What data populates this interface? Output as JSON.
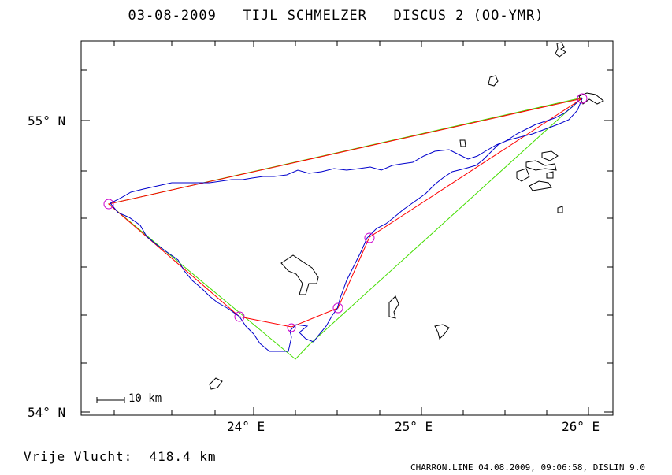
{
  "header": {
    "title": "03-08-2009   TIJL SCHMELZER   DISCUS 2 (OO-YMR)"
  },
  "axes": {
    "lat_labels": [
      "55° N",
      "54° N"
    ],
    "lon_labels": [
      "24° E",
      "25° E",
      "26° E"
    ]
  },
  "scale_bar": {
    "label": "10 km"
  },
  "colors": {
    "track": "#0000cc",
    "task_line": "#ff0000",
    "optimized_line": "#44dd00",
    "turnpoint": "#cc00cc",
    "coast": "#000000"
  },
  "turnpoints": [
    {
      "name": "start-finish",
      "lon": 25.95,
      "lat": 55.08
    },
    {
      "name": "tp-west",
      "lon": 23.16,
      "lat": 54.72
    },
    {
      "name": "tp-south-1",
      "lon": 23.93,
      "lat": 54.33
    },
    {
      "name": "tp-south-2",
      "lon": 24.23,
      "lat": 54.29
    },
    {
      "name": "tp-south-3",
      "lon": 24.52,
      "lat": 54.35
    },
    {
      "name": "tp-east",
      "lon": 24.7,
      "lat": 54.6
    }
  ],
  "footer": {
    "distance": "Vrije Vlucht:  418.4 km",
    "credit": "CHARRON.LINE 04.08.2009, 09:06:58, DISLIN 9.0"
  }
}
